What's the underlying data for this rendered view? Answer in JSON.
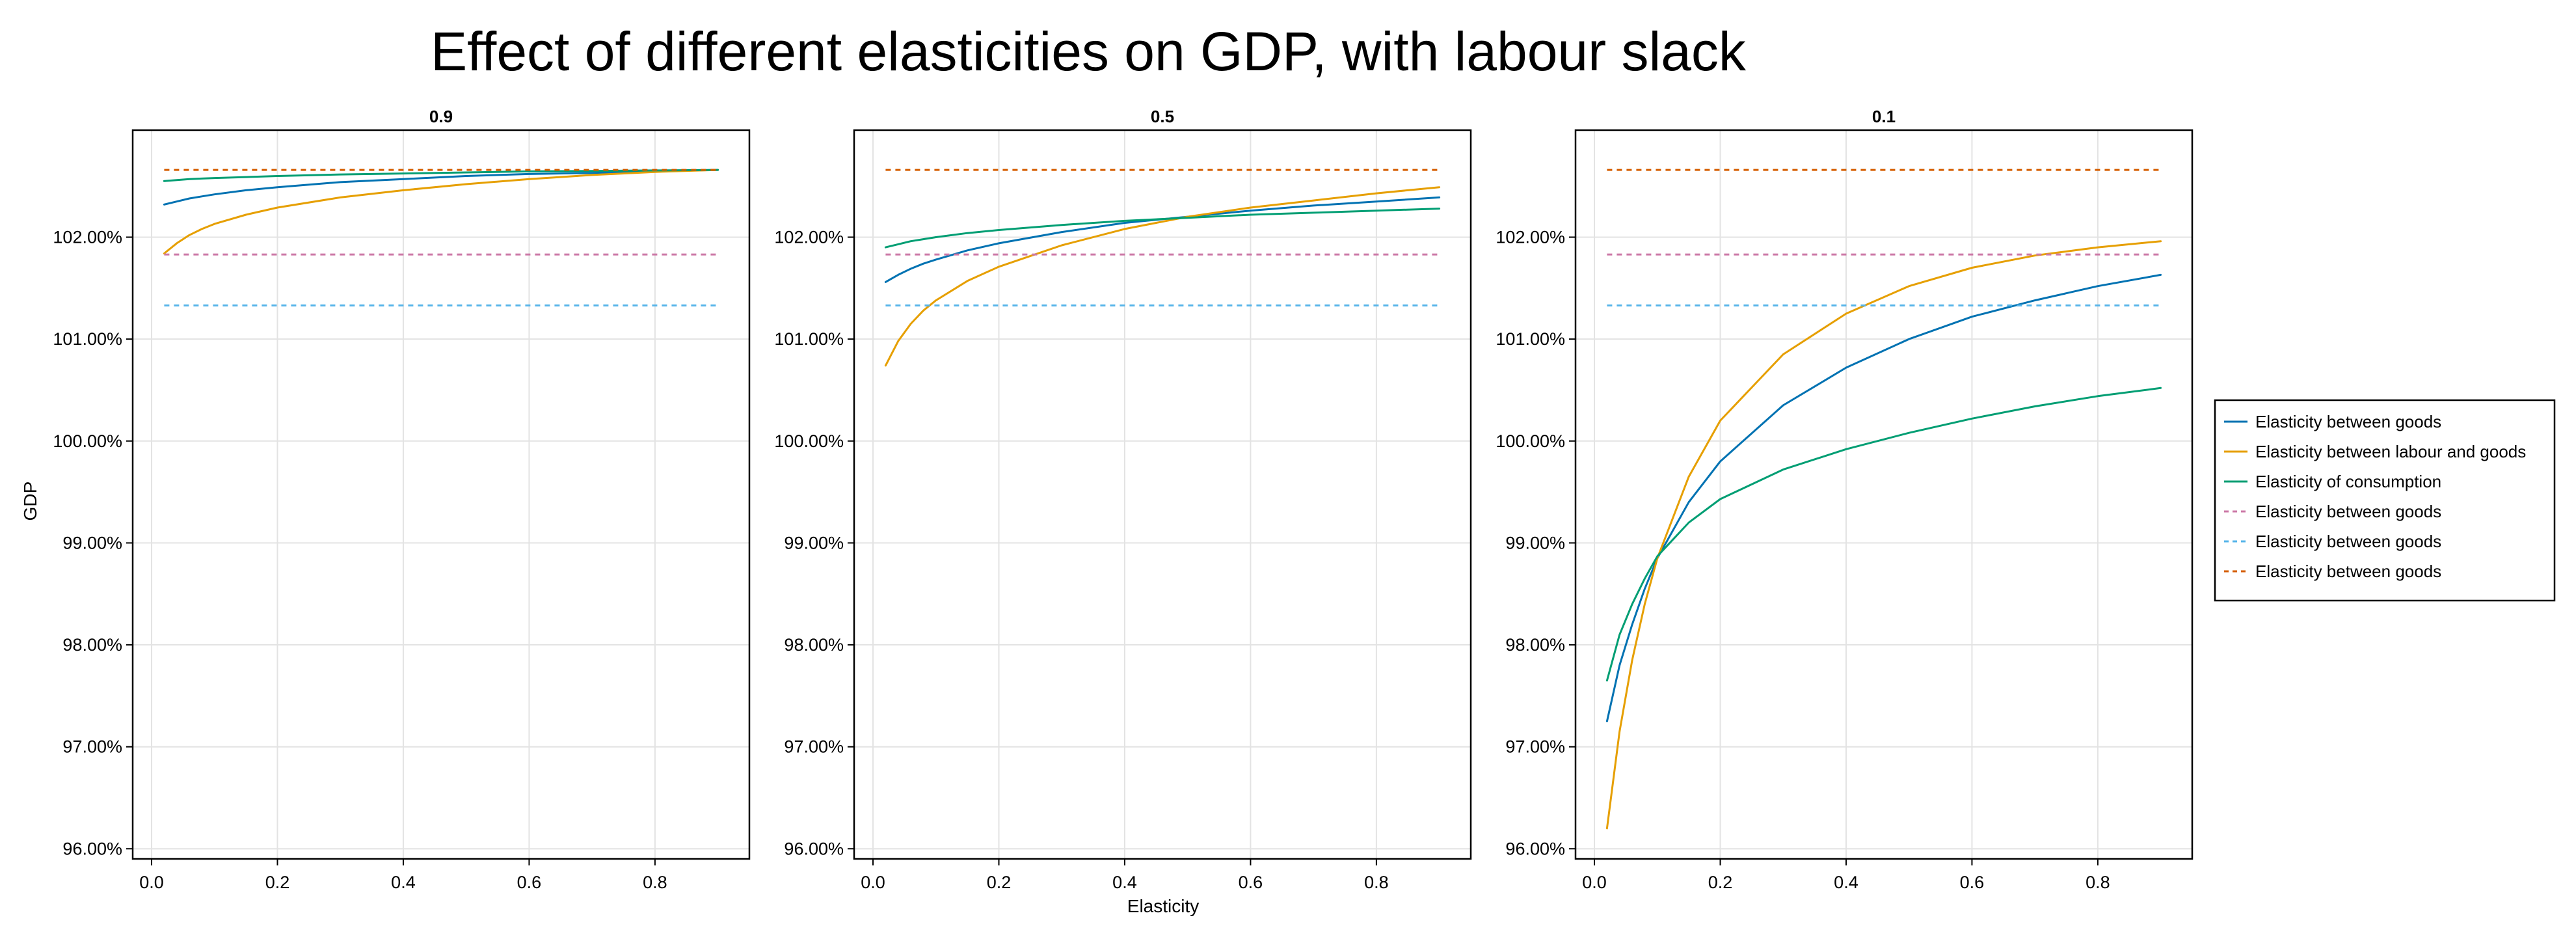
{
  "chart_data": {
    "type": "line",
    "title": "Effect of different elasticities on GDP, with labour slack",
    "ylabel": "GDP",
    "xlabel": "Elasticity",
    "ylim": [
      95.9,
      103.05
    ],
    "xlim": [
      -0.03,
      0.95
    ],
    "y_ticks": [
      96,
      97,
      98,
      99,
      100,
      101,
      102
    ],
    "y_tick_labels": [
      "96.00%",
      "97.00%",
      "98.00%",
      "99.00%",
      "100.00%",
      "101.00%",
      "102.00%"
    ],
    "x_ticks": [
      0.0,
      0.2,
      0.4,
      0.6,
      0.8
    ],
    "x_tick_labels": [
      "0.0",
      "0.2",
      "0.4",
      "0.6",
      "0.8"
    ],
    "grid": true,
    "legend_placement": "right",
    "x": [
      0.02,
      0.04,
      0.06,
      0.08,
      0.1,
      0.15,
      0.2,
      0.3,
      0.4,
      0.5,
      0.6,
      0.7,
      0.8,
      0.9
    ],
    "legend": [
      {
        "label": "Elasticity between goods",
        "color": "#0072B2",
        "style": "solid"
      },
      {
        "label": "Elasticity between labour and goods",
        "color": "#E69F00",
        "style": "solid"
      },
      {
        "label": "Elasticity of consumption",
        "color": "#009E73",
        "style": "solid"
      },
      {
        "label": "Elasticity between goods",
        "color": "#CC79A7",
        "style": "dashed"
      },
      {
        "label": "Elasticity between goods",
        "color": "#56B4E9",
        "style": "dashed"
      },
      {
        "label": "Elasticity between goods",
        "color": "#D55E00",
        "style": "dashed"
      }
    ],
    "panels": [
      {
        "title": "0.9",
        "series": [
          {
            "name": "Elasticity between goods",
            "color": "#0072B2",
            "style": "solid",
            "values": [
              102.32,
              102.35,
              102.38,
              102.4,
              102.42,
              102.46,
              102.49,
              102.54,
              102.57,
              102.6,
              102.62,
              102.63,
              102.645,
              102.66
            ]
          },
          {
            "name": "Elasticity between labour and goods",
            "color": "#E69F00",
            "style": "solid",
            "values": [
              101.84,
              101.94,
              102.02,
              102.08,
              102.13,
              102.22,
              102.29,
              102.39,
              102.46,
              102.52,
              102.57,
              102.61,
              102.64,
              102.66
            ]
          },
          {
            "name": "Elasticity of consumption",
            "color": "#009E73",
            "style": "solid",
            "values": [
              102.55,
              102.56,
              102.57,
              102.575,
              102.58,
              102.59,
              102.6,
              102.615,
              102.625,
              102.635,
              102.645,
              102.65,
              102.655,
              102.66
            ]
          },
          {
            "name": "Elasticity between goods",
            "color": "#CC79A7",
            "style": "dashed",
            "values": [
              101.83,
              101.83,
              101.83,
              101.83,
              101.83,
              101.83,
              101.83,
              101.83,
              101.83,
              101.83,
              101.83,
              101.83,
              101.83,
              101.83
            ]
          },
          {
            "name": "Elasticity between goods",
            "color": "#56B4E9",
            "style": "dashed",
            "values": [
              101.33,
              101.33,
              101.33,
              101.33,
              101.33,
              101.33,
              101.33,
              101.33,
              101.33,
              101.33,
              101.33,
              101.33,
              101.33,
              101.33
            ]
          },
          {
            "name": "Elasticity between goods",
            "color": "#D55E00",
            "style": "dashed",
            "values": [
              102.66,
              102.66,
              102.66,
              102.66,
              102.66,
              102.66,
              102.66,
              102.66,
              102.66,
              102.66,
              102.66,
              102.66,
              102.66,
              102.66
            ]
          }
        ]
      },
      {
        "title": "0.5",
        "series": [
          {
            "name": "Elasticity between goods",
            "color": "#0072B2",
            "style": "solid",
            "values": [
              101.56,
              101.63,
              101.69,
              101.74,
              101.78,
              101.87,
              101.94,
              102.05,
              102.14,
              102.2,
              102.26,
              102.31,
              102.35,
              102.39
            ]
          },
          {
            "name": "Elasticity between labour and goods",
            "color": "#E69F00",
            "style": "solid",
            "values": [
              100.74,
              100.98,
              101.15,
              101.28,
              101.38,
              101.57,
              101.71,
              101.92,
              102.08,
              102.2,
              102.29,
              102.36,
              102.43,
              102.49
            ]
          },
          {
            "name": "Elasticity of consumption",
            "color": "#009E73",
            "style": "solid",
            "values": [
              101.9,
              101.93,
              101.96,
              101.98,
              102.0,
              102.04,
              102.07,
              102.12,
              102.16,
              102.19,
              102.22,
              102.24,
              102.26,
              102.28
            ]
          },
          {
            "name": "Elasticity between goods",
            "color": "#CC79A7",
            "style": "dashed",
            "values": [
              101.83,
              101.83,
              101.83,
              101.83,
              101.83,
              101.83,
              101.83,
              101.83,
              101.83,
              101.83,
              101.83,
              101.83,
              101.83,
              101.83
            ]
          },
          {
            "name": "Elasticity between goods",
            "color": "#56B4E9",
            "style": "dashed",
            "values": [
              101.33,
              101.33,
              101.33,
              101.33,
              101.33,
              101.33,
              101.33,
              101.33,
              101.33,
              101.33,
              101.33,
              101.33,
              101.33,
              101.33
            ]
          },
          {
            "name": "Elasticity between goods",
            "color": "#D55E00",
            "style": "dashed",
            "values": [
              102.66,
              102.66,
              102.66,
              102.66,
              102.66,
              102.66,
              102.66,
              102.66,
              102.66,
              102.66,
              102.66,
              102.66,
              102.66,
              102.66
            ]
          }
        ]
      },
      {
        "title": "0.1",
        "series": [
          {
            "name": "Elasticity between goods",
            "color": "#0072B2",
            "style": "solid",
            "values": [
              97.25,
              97.8,
              98.2,
              98.55,
              98.85,
              99.4,
              99.8,
              100.35,
              100.72,
              101.0,
              101.22,
              101.38,
              101.52,
              101.63
            ]
          },
          {
            "name": "Elasticity between labour and goods",
            "color": "#E69F00",
            "style": "solid",
            "values": [
              96.2,
              97.15,
              97.85,
              98.4,
              98.85,
              99.65,
              100.2,
              100.85,
              101.25,
              101.52,
              101.7,
              101.82,
              101.9,
              101.96
            ]
          },
          {
            "name": "Elasticity of consumption",
            "color": "#009E73",
            "style": "solid",
            "values": [
              97.65,
              98.1,
              98.4,
              98.65,
              98.87,
              99.2,
              99.43,
              99.72,
              99.92,
              100.08,
              100.22,
              100.34,
              100.44,
              100.52
            ]
          },
          {
            "name": "Elasticity between goods",
            "color": "#CC79A7",
            "style": "dashed",
            "values": [
              101.83,
              101.83,
              101.83,
              101.83,
              101.83,
              101.83,
              101.83,
              101.83,
              101.83,
              101.83,
              101.83,
              101.83,
              101.83,
              101.83
            ]
          },
          {
            "name": "Elasticity between goods",
            "color": "#56B4E9",
            "style": "dashed",
            "values": [
              101.33,
              101.33,
              101.33,
              101.33,
              101.33,
              101.33,
              101.33,
              101.33,
              101.33,
              101.33,
              101.33,
              101.33,
              101.33,
              101.33
            ]
          },
          {
            "name": "Elasticity between goods",
            "color": "#D55E00",
            "style": "dashed",
            "values": [
              102.66,
              102.66,
              102.66,
              102.66,
              102.66,
              102.66,
              102.66,
              102.66,
              102.66,
              102.66,
              102.66,
              102.66,
              102.66,
              102.66
            ]
          }
        ]
      }
    ]
  }
}
